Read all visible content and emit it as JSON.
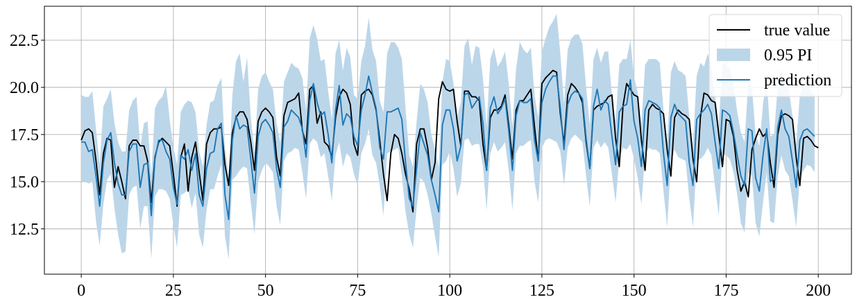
{
  "chart_data": {
    "type": "line",
    "x_range": [
      0,
      199
    ],
    "xlim": [
      -10,
      209
    ],
    "ylim": [
      10.1,
      24.3
    ],
    "grid": true,
    "legend_placement": "top-right",
    "x_ticks": [
      0,
      25,
      50,
      75,
      100,
      125,
      150,
      175,
      200
    ],
    "y_ticks": [
      12.5,
      15.0,
      17.5,
      20.0,
      22.5
    ],
    "x_tick_labels": [
      "0",
      "25",
      "50",
      "75",
      "100",
      "125",
      "150",
      "175",
      "200"
    ],
    "y_tick_labels": [
      "12.5",
      "15.0",
      "17.5",
      "20.0",
      "22.5"
    ],
    "colors": {
      "true_value": "#000000",
      "prediction": "#1f77b4",
      "interval": "#bcd6e9"
    },
    "legend": [
      "true value",
      "0.95 PI",
      "prediction"
    ],
    "series": [
      {
        "name": "true value",
        "values": [
          17.2,
          17.7,
          17.8,
          17.6,
          16.1,
          14.3,
          16.5,
          17.3,
          17.2,
          14.7,
          15.8,
          15.0,
          14.1,
          16.9,
          17.2,
          17.2,
          16.9,
          16.9,
          16.1,
          13.9,
          16.3,
          17.1,
          17.3,
          17.1,
          16.9,
          15.4,
          13.7,
          16.3,
          17.0,
          14.5,
          16.3,
          17.1,
          15.5,
          14.0,
          17.0,
          17.6,
          17.8,
          17.8,
          17.9,
          15.9,
          14.8,
          17.6,
          18.4,
          18.7,
          18.7,
          18.3,
          17.1,
          15.6,
          18.2,
          18.7,
          18.9,
          18.7,
          18.4,
          16.3,
          15.3,
          18.5,
          19.2,
          19.3,
          19.4,
          19.7,
          17.7,
          17.0,
          19.9,
          20.1,
          18.1,
          18.7,
          17.1,
          16.9,
          16.3,
          18.4,
          19.5,
          19.9,
          19.7,
          19.1,
          17.0,
          16.4,
          19.6,
          19.8,
          19.9,
          19.6,
          18.8,
          17.2,
          15.4,
          14.0,
          16.5,
          17.5,
          17.3,
          16.5,
          15.4,
          14.6,
          13.4,
          17.0,
          17.8,
          17.8,
          16.8,
          15.1,
          16.0,
          19.4,
          20.3,
          19.9,
          19.8,
          19.9,
          18.2,
          16.9,
          19.8,
          19.8,
          19.5,
          19.5,
          19.3,
          17.0,
          15.6,
          18.4,
          18.8,
          18.8,
          19.0,
          19.6,
          18.0,
          16.2,
          18.8,
          19.3,
          19.3,
          19.6,
          19.9,
          17.9,
          16.1,
          20.2,
          20.5,
          20.7,
          20.9,
          20.8,
          18.6,
          17.0,
          19.6,
          20.2,
          20.0,
          19.7,
          19.2,
          17.1,
          15.7,
          18.8,
          19.0,
          19.1,
          19.2,
          19.5,
          19.6,
          17.3,
          15.8,
          19.0,
          20.2,
          19.9,
          19.6,
          19.5,
          17.2,
          15.6,
          18.8,
          19.1,
          18.9,
          18.8,
          18.6,
          16.7,
          15.3,
          18.4,
          18.8,
          18.6,
          18.5,
          18.3,
          16.2,
          15.0,
          18.4,
          19.7,
          19.6,
          19.3,
          19.2,
          17.5,
          15.8,
          18.3,
          18.2,
          17.4,
          15.6,
          14.5,
          15.0,
          14.2,
          16.7,
          17.3,
          17.8,
          17.4,
          17.6,
          16.0,
          14.7,
          17.5,
          18.5,
          18.6,
          18.5,
          18.3,
          16.3,
          14.8,
          17.3,
          17.4,
          17.2,
          16.9,
          16.8
        ]
      },
      {
        "name": "prediction",
        "values": [
          17.1,
          17.1,
          16.6,
          16.7,
          15.3,
          13.7,
          16.0,
          17.2,
          17.6,
          16.0,
          14.9,
          14.3,
          14.3,
          16.6,
          17.0,
          17.0,
          14.7,
          15.9,
          16.0,
          13.2,
          16.2,
          17.2,
          17.2,
          16.6,
          16.2,
          14.7,
          13.8,
          16.4,
          16.2,
          16.7,
          15.6,
          16.5,
          14.3,
          13.7,
          15.7,
          16.5,
          16.6,
          17.8,
          18.1,
          14.3,
          13.0,
          17.2,
          18.5,
          17.8,
          18.0,
          17.9,
          16.2,
          14.4,
          17.4,
          18.1,
          18.3,
          18.0,
          17.6,
          15.7,
          14.7,
          17.9,
          18.2,
          18.8,
          18.6,
          18.4,
          17.8,
          16.3,
          19.3,
          20.2,
          19.2,
          18.5,
          18.7,
          17.5,
          16.0,
          18.8,
          20.1,
          18.0,
          18.6,
          18.4,
          17.4,
          16.9,
          18.8,
          19.6,
          20.6,
          19.7,
          18.9,
          16.8,
          16.2,
          18.7,
          18.7,
          18.8,
          18.9,
          18.3,
          16.0,
          14.1,
          13.7,
          15.7,
          17.6,
          17.0,
          16.4,
          15.1,
          14.3,
          13.4,
          18.0,
          18.8,
          18.8,
          17.8,
          16.1,
          16.9,
          19.6,
          19.7,
          18.9,
          19.2,
          19.5,
          18.1,
          15.6,
          18.9,
          19.5,
          18.6,
          18.9,
          19.4,
          17.7,
          15.6,
          18.5,
          19.3,
          19.2,
          19.2,
          19.4,
          17.2,
          16.1,
          19.2,
          19.9,
          20.3,
          20.6,
          20.6,
          18.9,
          16.7,
          19.1,
          19.6,
          19.8,
          19.7,
          19.4,
          17.3,
          15.7,
          19.0,
          19.9,
          18.8,
          19.3,
          19.1,
          17.4,
          15.9,
          18.7,
          19.0,
          19.1,
          20.4,
          18.2,
          17.3,
          15.8,
          18.8,
          19.3,
          19.2,
          19.1,
          18.9,
          16.5,
          14.8,
          18.4,
          19.1,
          18.6,
          18.4,
          18.2,
          16.0,
          14.8,
          18.3,
          18.6,
          18.8,
          19.1,
          18.6,
          17.1,
          15.7,
          18.8,
          18.7,
          18.5,
          17.6,
          16.4,
          15.3,
          14.8,
          17.8,
          17.7,
          15.2,
          14.5,
          16.4,
          17.8,
          15.0,
          15.2,
          17.9,
          18.8,
          17.8,
          17.4,
          16.1,
          14.7,
          17.2,
          17.7,
          17.8,
          17.6,
          17.4
        ]
      },
      {
        "name": "0.95 PI",
        "lower": [
          15.0,
          15.0,
          14.9,
          15.0,
          12.9,
          11.6,
          13.8,
          15.1,
          15.4,
          13.6,
          12.2,
          11.2,
          11.3,
          14.3,
          14.7,
          14.8,
          12.5,
          13.7,
          13.7,
          10.9,
          14.2,
          14.6,
          14.6,
          14.5,
          14.1,
          12.7,
          11.5,
          14.3,
          14.4,
          14.6,
          13.6,
          14.4,
          12.2,
          11.5,
          13.5,
          14.6,
          14.6,
          15.3,
          15.9,
          12.1,
          10.9,
          15.1,
          15.3,
          15.6,
          15.8,
          15.7,
          13.9,
          12.2,
          15.0,
          15.6,
          16.0,
          15.8,
          15.5,
          13.7,
          12.7,
          16.1,
          16.5,
          16.6,
          16.8,
          16.7,
          15.5,
          14.1,
          17.0,
          17.3,
          17.1,
          16.3,
          16.5,
          15.3,
          14.0,
          16.4,
          17.1,
          15.8,
          16.5,
          16.3,
          15.4,
          14.8,
          16.5,
          17.0,
          17.8,
          16.4,
          16.0,
          14.8,
          13.2,
          16.5,
          16.6,
          16.7,
          16.8,
          15.3,
          13.4,
          12.2,
          11.5,
          13.6,
          15.2,
          15.0,
          14.3,
          13.3,
          12.1,
          11.0,
          15.9,
          16.1,
          16.6,
          15.7,
          14.2,
          14.9,
          17.2,
          17.3,
          16.9,
          17.0,
          17.0,
          15.8,
          13.5,
          16.5,
          17.1,
          16.6,
          16.8,
          17.1,
          15.6,
          13.5,
          16.5,
          16.9,
          16.9,
          17.1,
          17.2,
          15.0,
          13.9,
          16.8,
          17.2,
          17.3,
          17.2,
          17.1,
          16.6,
          14.8,
          16.8,
          17.3,
          17.5,
          17.3,
          17.1,
          15.3,
          13.7,
          16.8,
          17.2,
          16.8,
          17.1,
          16.8,
          15.4,
          13.9,
          16.2,
          16.8,
          16.7,
          17.0,
          16.2,
          15.2,
          13.8,
          16.4,
          16.8,
          16.7,
          16.7,
          16.5,
          14.5,
          12.6,
          16.0,
          16.7,
          16.3,
          16.2,
          16.1,
          14.1,
          12.6,
          16.1,
          16.2,
          16.4,
          16.8,
          16.4,
          14.7,
          13.2,
          16.5,
          16.4,
          16.2,
          15.5,
          14.3,
          12.8,
          12.3,
          15.5,
          15.3,
          12.8,
          12.1,
          13.9,
          15.5,
          12.9,
          12.8,
          15.3,
          16.4,
          15.6,
          15.3,
          14.0,
          12.6,
          15.2,
          15.6,
          15.9,
          15.8,
          15.5
        ],
        "upper": [
          19.6,
          19.5,
          19.5,
          19.8,
          17.8,
          15.9,
          19.0,
          19.4,
          19.9,
          18.1,
          17.1,
          16.6,
          16.6,
          18.8,
          19.3,
          19.5,
          16.8,
          18.1,
          18.2,
          15.3,
          18.9,
          19.3,
          19.5,
          20.1,
          18.3,
          16.8,
          15.9,
          18.7,
          19.1,
          19.3,
          19.2,
          18.7,
          16.6,
          15.8,
          18.0,
          19.2,
          19.3,
          20.1,
          20.5,
          16.8,
          15.3,
          19.6,
          21.4,
          21.8,
          20.3,
          21.6,
          18.4,
          16.6,
          19.9,
          20.6,
          20.8,
          20.3,
          19.9,
          18.1,
          17.1,
          20.3,
          20.8,
          21.3,
          21.1,
          21.0,
          20.5,
          18.8,
          22.6,
          23.3,
          22.6,
          21.4,
          21.5,
          19.8,
          18.3,
          21.8,
          22.5,
          20.9,
          22.1,
          21.6,
          19.6,
          19.4,
          21.4,
          22.2,
          23.7,
          22.0,
          21.4,
          19.3,
          18.7,
          21.8,
          22.4,
          22.4,
          22.1,
          21.5,
          18.9,
          16.4,
          15.8,
          18.2,
          20.2,
          19.9,
          19.2,
          17.5,
          16.7,
          15.8,
          20.3,
          21.5,
          21.4,
          20.2,
          18.4,
          19.2,
          22.2,
          22.6,
          21.2,
          22.2,
          22.1,
          20.5,
          17.9,
          21.5,
          22.1,
          21.1,
          21.4,
          21.9,
          20.2,
          17.9,
          21.0,
          22.4,
          22.0,
          21.8,
          22.1,
          19.6,
          18.4,
          21.9,
          22.6,
          23.2,
          23.5,
          23.9,
          21.8,
          19.1,
          22.0,
          22.6,
          22.8,
          22.8,
          22.3,
          20.0,
          18.0,
          21.5,
          22.1,
          21.3,
          21.9,
          21.9,
          19.6,
          18.2,
          21.2,
          21.5,
          21.5,
          22.5,
          20.6,
          19.7,
          18.1,
          21.2,
          21.5,
          21.5,
          21.5,
          21.3,
          18.8,
          17.1,
          20.8,
          21.4,
          20.9,
          20.8,
          20.6,
          18.4,
          17.0,
          20.6,
          21.3,
          21.1,
          21.8,
          21.0,
          19.5,
          18.0,
          21.3,
          21.2,
          21.0,
          20.2,
          18.7,
          17.6,
          17.1,
          20.3,
          20.0,
          17.5,
          16.9,
          19.1,
          20.5,
          17.4,
          17.5,
          20.1,
          21.0,
          20.1,
          19.9,
          18.5,
          17.0,
          19.6,
          20.1,
          20.3,
          19.8,
          19.6
        ]
      }
    ]
  }
}
